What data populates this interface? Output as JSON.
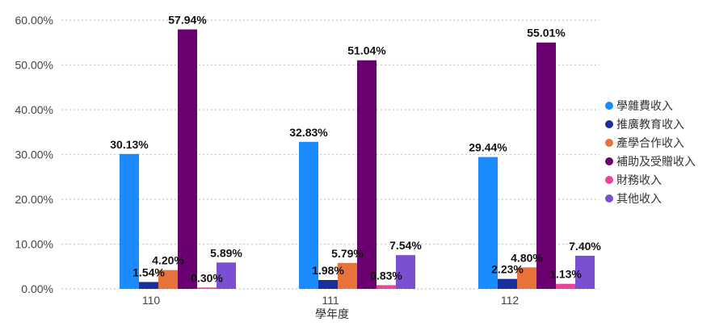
{
  "chart_data": {
    "type": "bar",
    "xlabel": "學年度",
    "ylabel": "",
    "categories": [
      "110",
      "111",
      "112"
    ],
    "ylim": [
      0,
      60
    ],
    "yticks": [
      "0.00%",
      "10.00%",
      "20.00%",
      "30.00%",
      "40.00%",
      "50.00%",
      "60.00%"
    ],
    "grid": "horizontal-dotted",
    "legend_position": "right",
    "series": [
      {
        "name": "學雜費收入",
        "color": "#1a8cff",
        "values": [
          30.13,
          32.83,
          29.44
        ],
        "labels": [
          "30.13%",
          "32.83%",
          "29.44%"
        ]
      },
      {
        "name": "推廣教育收入",
        "color": "#1a2f9c",
        "values": [
          1.54,
          1.98,
          2.23
        ],
        "labels": [
          "1.54%",
          "1.98%",
          "2.23%"
        ]
      },
      {
        "name": "產學合作收入",
        "color": "#e8733a",
        "values": [
          4.2,
          5.79,
          4.8
        ],
        "labels": [
          "4.20%",
          "5.79%",
          "4.80%"
        ]
      },
      {
        "name": "補助及受贈收入",
        "color": "#6b0070",
        "values": [
          57.94,
          51.04,
          55.01
        ],
        "labels": [
          "57.94%",
          "51.04%",
          "55.01%"
        ]
      },
      {
        "name": "財務收入",
        "color": "#e8449a",
        "values": [
          0.3,
          0.83,
          1.13
        ],
        "labels": [
          "0.30%",
          "0.83%",
          "1.13%"
        ]
      },
      {
        "name": "其他收入",
        "color": "#7b4fd1",
        "values": [
          5.89,
          7.54,
          7.4
        ],
        "labels": [
          "5.89%",
          "7.54%",
          "7.40%"
        ]
      }
    ]
  }
}
